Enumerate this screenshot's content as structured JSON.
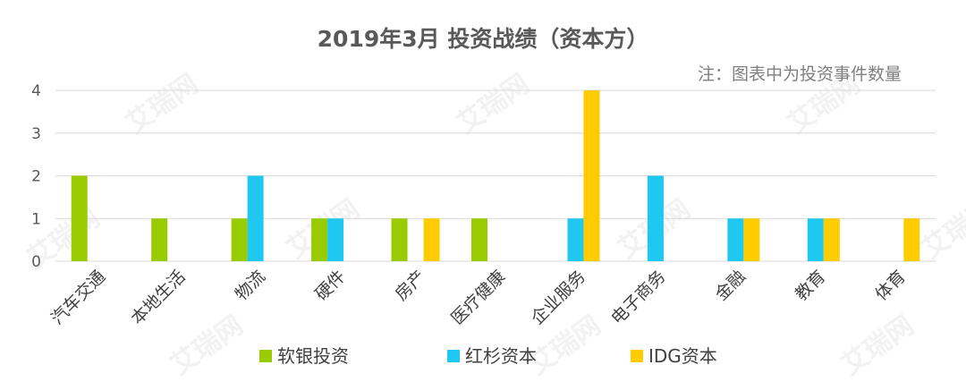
{
  "chart_data": {
    "type": "bar",
    "title": "2019年3月 投资战绩（资本方）",
    "note": "注：图表中为投资事件数量",
    "categories": [
      "汽车交通",
      "本地生活",
      "物流",
      "硬件",
      "房产",
      "医疗健康",
      "企业服务",
      "电子商务",
      "金融",
      "教育",
      "体育"
    ],
    "series": [
      {
        "name": "软银投资",
        "color": "#99cc00",
        "values": [
          2,
          1,
          1,
          1,
          1,
          1,
          0,
          0,
          0,
          0,
          0
        ]
      },
      {
        "name": "红杉资本",
        "color": "#1ec8f0",
        "values": [
          0,
          0,
          2,
          1,
          0,
          0,
          1,
          2,
          1,
          1,
          0
        ]
      },
      {
        "name": "IDG资本",
        "color": "#ffcc00",
        "values": [
          0,
          0,
          0,
          0,
          1,
          0,
          4,
          0,
          1,
          1,
          1
        ]
      }
    ],
    "ylim": [
      0,
      4
    ],
    "yticks": [
      "0",
      "1",
      "2",
      "3",
      "4"
    ],
    "grid": true,
    "legend_position": "bottom",
    "watermark": "艾瑞网"
  }
}
